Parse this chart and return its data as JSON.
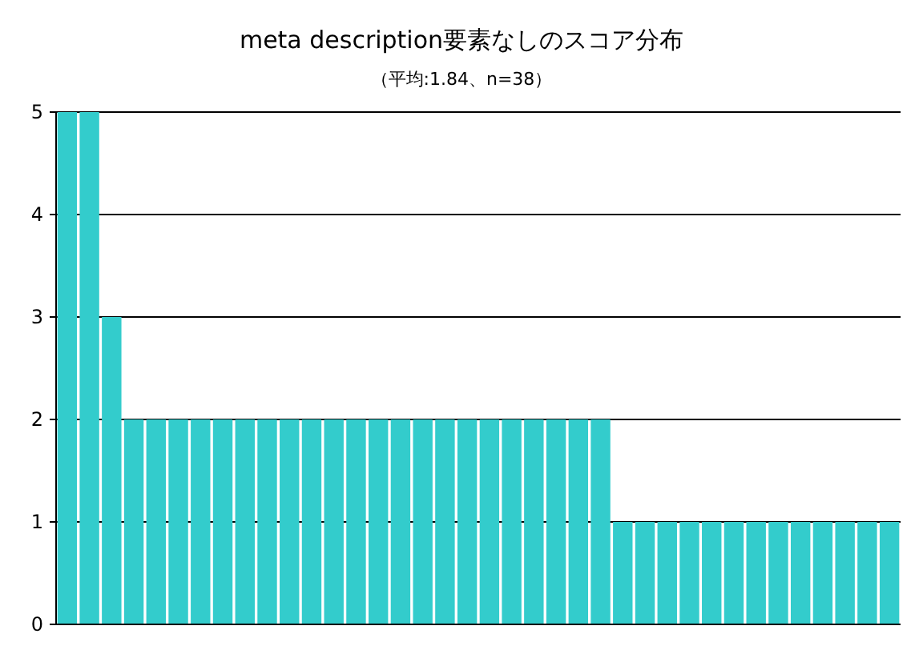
{
  "chart_data": {
    "type": "bar",
    "title": "meta description要素なしのスコア分布",
    "subtitle": "（平均:1.84、n=38）",
    "categories": [
      null,
      null,
      null,
      null,
      null,
      null,
      null,
      null,
      null,
      null,
      null,
      null,
      null,
      null,
      null,
      null,
      null,
      null,
      null,
      null,
      null,
      null,
      null,
      null,
      null,
      null,
      null,
      null,
      null,
      null,
      null,
      null,
      null,
      null,
      null,
      null,
      null,
      null
    ],
    "values": [
      5,
      5,
      3,
      2,
      2,
      2,
      2,
      2,
      2,
      2,
      2,
      2,
      2,
      2,
      2,
      2,
      2,
      2,
      2,
      2,
      2,
      2,
      2,
      2,
      2,
      1,
      1,
      1,
      1,
      1,
      1,
      1,
      1,
      1,
      1,
      1,
      1,
      1
    ],
    "color": "#33cccc",
    "ylim": [
      0,
      5
    ],
    "yticks": [
      0,
      1,
      2,
      3,
      4,
      5
    ],
    "grid": "y"
  }
}
